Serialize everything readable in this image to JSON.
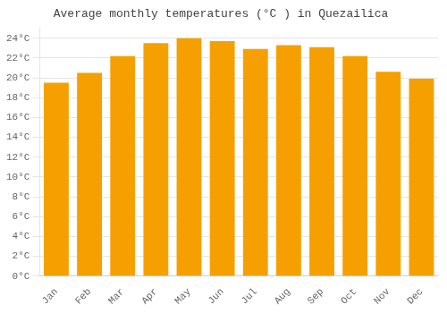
{
  "chart_data": {
    "type": "bar",
    "title": "Average monthly temperatures (°C ) in Quezailica",
    "categories": [
      "Jan",
      "Feb",
      "Mar",
      "Apr",
      "May",
      "Jun",
      "Jul",
      "Aug",
      "Sep",
      "Oct",
      "Nov",
      "Dec"
    ],
    "values": [
      19.5,
      20.5,
      22.2,
      23.5,
      24.0,
      23.7,
      22.9,
      23.3,
      23.1,
      22.2,
      20.6,
      19.9
    ],
    "color": "#F5A000",
    "ylim": [
      0,
      25
    ],
    "yticks": [
      {
        "value": 0,
        "label": "0°C"
      },
      {
        "value": 2,
        "label": "2°C"
      },
      {
        "value": 4,
        "label": "4°C"
      },
      {
        "value": 6,
        "label": "6°C"
      },
      {
        "value": 8,
        "label": "8°C"
      },
      {
        "value": 10,
        "label": "10°C"
      },
      {
        "value": 12,
        "label": "12°C"
      },
      {
        "value": 14,
        "label": "14°C"
      },
      {
        "value": 16,
        "label": "16°C"
      },
      {
        "value": 18,
        "label": "18°C"
      },
      {
        "value": 20,
        "label": "20°C"
      },
      {
        "value": 22,
        "label": "22°C"
      },
      {
        "value": 24,
        "label": "24°C"
      }
    ],
    "grid": true
  }
}
